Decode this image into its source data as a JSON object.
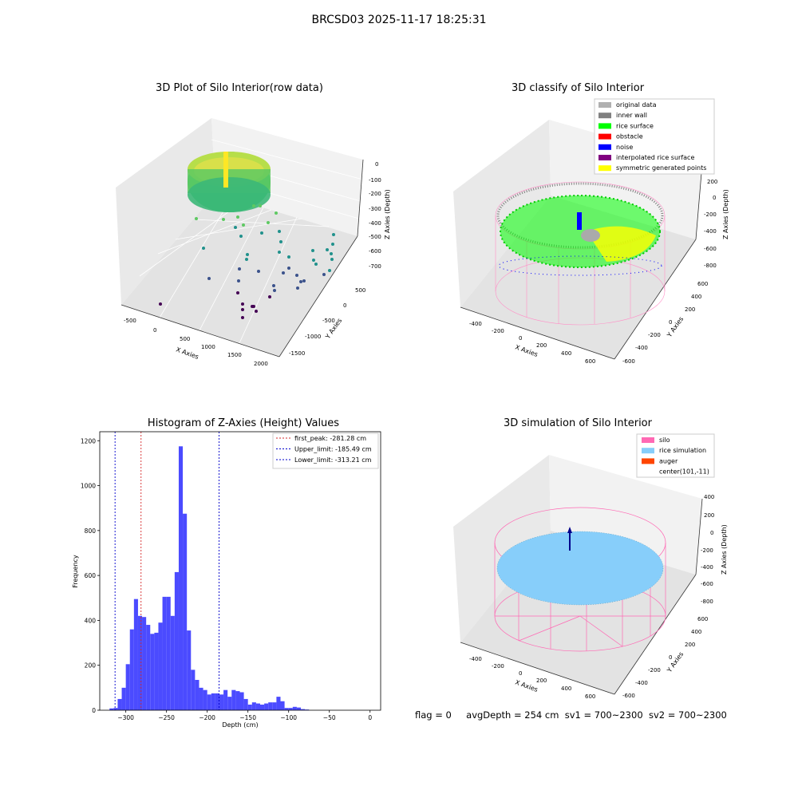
{
  "suptitle": "BRCSD03 2025-11-17 18:25:31",
  "chart_data": [
    {
      "type": "scatter",
      "title": "3D Plot of Silo Interior(row data)",
      "xlabel": "X Axies",
      "ylabel": "Y Axies",
      "zlabel": "Z Axies (Depth)",
      "x_ticks": [
        "-500",
        "0",
        "500",
        "1000",
        "1500",
        "2000"
      ],
      "y_ticks": [
        "500",
        "0",
        "-500",
        "-1000",
        "-1500"
      ],
      "z_ticks": [
        "0",
        "-100",
        "-200",
        "-300",
        "-400",
        "-500",
        "-600",
        "-700"
      ],
      "colormap": [
        "#440154",
        "#3b528b",
        "#21918c",
        "#5ec962",
        "#fde725"
      ]
    },
    {
      "type": "scatter",
      "title": "3D classify of Silo Interior",
      "xlabel": "X Axies",
      "ylabel": "Y Axies",
      "zlabel": "Z Axies (Depth)",
      "x_ticks": [
        "-400",
        "-200",
        "0",
        "200",
        "400",
        "600"
      ],
      "y_ticks": [
        "600",
        "400",
        "200",
        "0",
        "-200",
        "-400",
        "-600"
      ],
      "z_ticks": [
        "200",
        "0",
        "-200",
        "-400",
        "-600",
        "-800"
      ],
      "legend": [
        {
          "label": "original data",
          "color": "#b0b0b0"
        },
        {
          "label": "inner wall",
          "color": "#808080"
        },
        {
          "label": "rice surface",
          "color": "#00ff00"
        },
        {
          "label": "obstacle",
          "color": "#ff0000"
        },
        {
          "label": "noise",
          "color": "#0000ff"
        },
        {
          "label": "interpolated rice surface",
          "color": "#800080"
        },
        {
          "label": "symmetric generated points",
          "color": "#ffff00"
        }
      ]
    },
    {
      "type": "bar",
      "title": "Histogram of Z-Axies (Height) Values",
      "xlabel": "Depth (cm)",
      "ylabel": "Frequency",
      "xlim": [
        -332,
        13
      ],
      "ylim": [
        0,
        1240
      ],
      "x_ticks": [
        -300,
        -250,
        -200,
        -150,
        -100,
        -50,
        0
      ],
      "y_ticks": [
        0,
        200,
        400,
        600,
        800,
        1000,
        1200
      ],
      "bin_start": -320,
      "bin_width": 5,
      "values": [
        8,
        10,
        50,
        100,
        205,
        360,
        495,
        420,
        415,
        380,
        340,
        345,
        390,
        505,
        505,
        420,
        615,
        1175,
        875,
        355,
        180,
        135,
        100,
        90,
        70,
        75,
        75,
        70,
        90,
        60,
        90,
        85,
        80,
        50,
        25,
        35,
        30,
        25,
        30,
        35,
        35,
        60,
        40,
        10,
        10,
        15,
        12,
        5,
        3
      ],
      "bar_color": "#4b4bff",
      "vlines": [
        {
          "label": "first_peak: -281.28 cm",
          "x": -281.28,
          "color": "#d62728"
        },
        {
          "label": "Upper_limit: -185.49 cm",
          "x": -185.49,
          "color": "#0000cc"
        },
        {
          "label": "Lower_limit: -313.21 cm",
          "x": -313.21,
          "color": "#0000cc"
        }
      ],
      "legend_position": "top-right"
    },
    {
      "type": "scatter",
      "title": "3D simulation of Silo Interior",
      "xlabel": "X Axies",
      "ylabel": "Y Axies",
      "zlabel": "Z Axies (Depth)",
      "x_ticks": [
        "-400",
        "-200",
        "0",
        "200",
        "400",
        "600"
      ],
      "y_ticks": [
        "600",
        "400",
        "200",
        "0",
        "-200",
        "-400",
        "-600"
      ],
      "z_ticks": [
        "400",
        "200",
        "0",
        "-200",
        "-400",
        "-600",
        "-800"
      ],
      "legend": [
        {
          "label": "silo",
          "color": "#ff69b4"
        },
        {
          "label": "rice simulation",
          "color": "#87cefa"
        },
        {
          "label": "auger",
          "color": "#ff4500"
        },
        {
          "label": "center(101,-11)",
          "color": "none"
        }
      ]
    }
  ],
  "status": {
    "flag": "flag = 0",
    "avg_depth": "avgDepth = 254 cm",
    "sv1": "sv1 = 700~2300",
    "sv2": "sv2 = 700~2300"
  }
}
